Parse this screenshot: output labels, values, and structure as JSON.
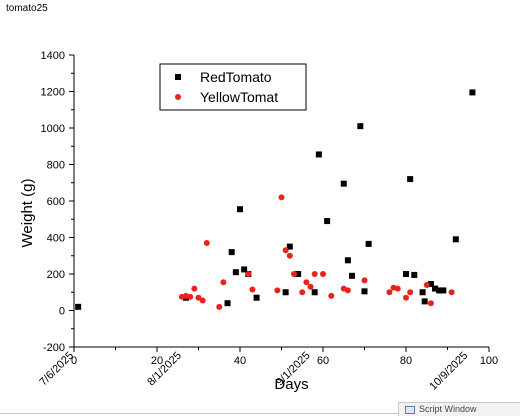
{
  "window": {
    "title": "tomato25"
  },
  "script_window": {
    "label": "Script Window"
  },
  "chart_data": {
    "type": "scatter",
    "title": "",
    "xlabel": "Days",
    "ylabel": "Weight (g)",
    "xlim": [
      0,
      100
    ],
    "ylim": [
      -200,
      1400
    ],
    "x_ticks": [
      0,
      20,
      40,
      60,
      80,
      100
    ],
    "y_ticks": [
      -200,
      0,
      200,
      400,
      600,
      800,
      1000,
      1200,
      1400
    ],
    "date_labels": [
      {
        "x": 0,
        "label": "7/6/2025"
      },
      {
        "x": 26,
        "label": "8/1/2025"
      },
      {
        "x": 57,
        "label": "9/1/2025"
      },
      {
        "x": 95,
        "label": "10/9/2025"
      }
    ],
    "legend_position": "top-left",
    "series": [
      {
        "name": "RedTomato",
        "marker": "square",
        "color": "#000000",
        "points": [
          [
            1,
            20
          ],
          [
            27,
            70
          ],
          [
            37,
            40
          ],
          [
            38,
            320
          ],
          [
            39,
            210
          ],
          [
            40,
            555
          ],
          [
            41,
            225
          ],
          [
            42,
            200
          ],
          [
            44,
            70
          ],
          [
            51,
            100
          ],
          [
            52,
            350
          ],
          [
            54,
            200
          ],
          [
            58,
            100
          ],
          [
            59,
            855
          ],
          [
            61,
            490
          ],
          [
            65,
            695
          ],
          [
            66,
            275
          ],
          [
            67,
            190
          ],
          [
            69,
            1010
          ],
          [
            70,
            105
          ],
          [
            71,
            365
          ],
          [
            80,
            200
          ],
          [
            81,
            720
          ],
          [
            82,
            195
          ],
          [
            84,
            100
          ],
          [
            84.5,
            50
          ],
          [
            86,
            145
          ],
          [
            87,
            120
          ],
          [
            88,
            110
          ],
          [
            89,
            110
          ],
          [
            92,
            390
          ],
          [
            96,
            1195
          ]
        ]
      },
      {
        "name": "YellowTomat",
        "marker": "circle",
        "color": "#e8231d",
        "points": [
          [
            26,
            75
          ],
          [
            27,
            80
          ],
          [
            28,
            75
          ],
          [
            29,
            120
          ],
          [
            30,
            70
          ],
          [
            31,
            55
          ],
          [
            32,
            370
          ],
          [
            35,
            20
          ],
          [
            36,
            155
          ],
          [
            42,
            200
          ],
          [
            43,
            115
          ],
          [
            49,
            110
          ],
          [
            50,
            620
          ],
          [
            51,
            330
          ],
          [
            52,
            300
          ],
          [
            53,
            200
          ],
          [
            55,
            100
          ],
          [
            56,
            155
          ],
          [
            57,
            130
          ],
          [
            58,
            200
          ],
          [
            60,
            200
          ],
          [
            62,
            80
          ],
          [
            65,
            120
          ],
          [
            66,
            110
          ],
          [
            70,
            165
          ],
          [
            76,
            100
          ],
          [
            77,
            125
          ],
          [
            78,
            120
          ],
          [
            80,
            70
          ],
          [
            81,
            100
          ],
          [
            85,
            140
          ],
          [
            86,
            40
          ],
          [
            91,
            100
          ]
        ]
      }
    ]
  }
}
